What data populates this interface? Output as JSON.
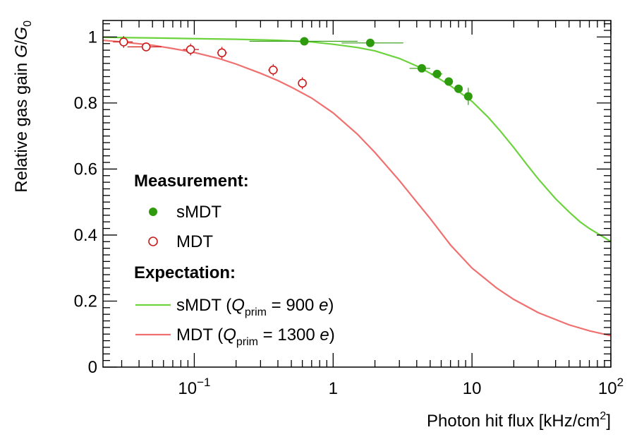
{
  "chart_data": {
    "type": "scatter",
    "title": "",
    "xlabel": {
      "main": "Photon hit flux [kHz/cm",
      "sup": "2",
      "end": "]"
    },
    "ylabel": {
      "main": "Relative gas gain ",
      "var": "G",
      "sep": "/",
      "var2": "G",
      "sub": "0"
    },
    "xscale": "log",
    "xlim": [
      0.022,
      100
    ],
    "ylim": [
      0,
      1.05
    ],
    "x_ticks": [
      {
        "value": 0.1,
        "base": "10",
        "exp": "−1"
      },
      {
        "value": 1,
        "base": "1",
        "exp": ""
      },
      {
        "value": 10,
        "base": "10",
        "exp": ""
      },
      {
        "value": 100,
        "base": "10",
        "exp": "2"
      }
    ],
    "y_ticks": [
      {
        "value": 0,
        "label": "0"
      },
      {
        "value": 0.2,
        "label": "0.2"
      },
      {
        "value": 0.4,
        "label": "0.4"
      },
      {
        "value": 0.6,
        "label": "0.6"
      },
      {
        "value": 0.8,
        "label": "0.8"
      },
      {
        "value": 1.0,
        "label": "1"
      }
    ],
    "grid": false,
    "legend": {
      "position": "center-left",
      "measurement_header": "Measurement:",
      "expectation_header": "Expectation:",
      "entries": [
        {
          "kind": "marker",
          "series": "sMDT",
          "label": "sMDT"
        },
        {
          "kind": "marker",
          "series": "MDT",
          "label": "MDT"
        },
        {
          "kind": "line",
          "series": "sMDT",
          "label": "sMDT (",
          "q": "Q",
          "sub": "prim",
          "eq": " =   900 ",
          "unit": "e",
          "close": ")"
        },
        {
          "kind": "line",
          "series": "MDT",
          "label": "MDT   (",
          "q": "Q",
          "sub": "prim",
          "eq": " = 1300 ",
          "unit": "e",
          "close": ")"
        }
      ]
    },
    "colors": {
      "smdt_marker": "#2e9a0e",
      "smdt_line": "#6cd33d",
      "mdt_marker": "#cc1a1a",
      "mdt_line": "#f07070"
    },
    "series": [
      {
        "name": "sMDT measurement",
        "style": "filled-circle",
        "color_key": "smdt_marker",
        "points": [
          {
            "x": 0.62,
            "y": 0.987,
            "xerr": [
              0.25,
              1.5
            ],
            "yerr": 0.006
          },
          {
            "x": 1.85,
            "y": 0.982,
            "xerr": [
              1.15,
              3.2
            ],
            "yerr": 0.006
          },
          {
            "x": 4.35,
            "y": 0.905,
            "xerr": [
              3.55,
              5.0
            ],
            "yerr": 0.008
          },
          {
            "x": 5.6,
            "y": 0.888,
            "xerr": [
              5.1,
              6.1
            ],
            "yerr": 0.008
          },
          {
            "x": 6.8,
            "y": 0.865,
            "xerr": [
              6.3,
              7.3
            ],
            "yerr": 0.008
          },
          {
            "x": 8.0,
            "y": 0.843,
            "xerr": [
              7.5,
              8.5
            ],
            "yerr": 0.01
          },
          {
            "x": 9.4,
            "y": 0.82,
            "xerr": [
              8.9,
              9.9
            ],
            "yerr": 0.026
          }
        ]
      },
      {
        "name": "MDT measurement",
        "style": "open-circle",
        "color_key": "mdt_marker",
        "points": [
          {
            "x": 0.031,
            "y": 0.985,
            "xerr": [
              0.026,
              0.036
            ],
            "yerr": 0.018
          },
          {
            "x": 0.045,
            "y": 0.97,
            "xerr": [
              0.033,
              0.058
            ],
            "yerr": 0.012
          },
          {
            "x": 0.094,
            "y": 0.962,
            "xerr": [
              0.083,
              0.108
            ],
            "yerr": 0.018
          },
          {
            "x": 0.158,
            "y": 0.952,
            "xerr": [
              0.146,
              0.172
            ],
            "yerr": 0.018
          },
          {
            "x": 0.37,
            "y": 0.9,
            "xerr": [
              0.34,
              0.4
            ],
            "yerr": 0.018
          },
          {
            "x": 0.6,
            "y": 0.86,
            "xerr": [
              0.57,
              0.63
            ],
            "yerr": 0.018
          }
        ]
      },
      {
        "name": "sMDT expectation",
        "style": "line",
        "color_key": "smdt_line",
        "points": [
          {
            "x": 0.022,
            "y": 0.999
          },
          {
            "x": 0.05,
            "y": 0.997
          },
          {
            "x": 0.1,
            "y": 0.995
          },
          {
            "x": 0.2,
            "y": 0.993
          },
          {
            "x": 0.4,
            "y": 0.99
          },
          {
            "x": 0.7,
            "y": 0.985
          },
          {
            "x": 1,
            "y": 0.978
          },
          {
            "x": 1.5,
            "y": 0.968
          },
          {
            "x": 2,
            "y": 0.958
          },
          {
            "x": 3,
            "y": 0.935
          },
          {
            "x": 4,
            "y": 0.912
          },
          {
            "x": 5,
            "y": 0.89
          },
          {
            "x": 6,
            "y": 0.87
          },
          {
            "x": 7,
            "y": 0.852
          },
          {
            "x": 8,
            "y": 0.835
          },
          {
            "x": 10,
            "y": 0.805
          },
          {
            "x": 13,
            "y": 0.758
          },
          {
            "x": 16,
            "y": 0.715
          },
          {
            "x": 20,
            "y": 0.665
          },
          {
            "x": 25,
            "y": 0.612
          },
          {
            "x": 30,
            "y": 0.57
          },
          {
            "x": 40,
            "y": 0.51
          },
          {
            "x": 50,
            "y": 0.47
          },
          {
            "x": 60,
            "y": 0.44
          },
          {
            "x": 70,
            "y": 0.42
          },
          {
            "x": 80,
            "y": 0.405
          },
          {
            "x": 90,
            "y": 0.392
          },
          {
            "x": 100,
            "y": 0.38
          }
        ]
      },
      {
        "name": "MDT expectation",
        "style": "line",
        "color_key": "mdt_line",
        "points": [
          {
            "x": 0.022,
            "y": 0.99
          },
          {
            "x": 0.03,
            "y": 0.985
          },
          {
            "x": 0.05,
            "y": 0.975
          },
          {
            "x": 0.07,
            "y": 0.965
          },
          {
            "x": 0.1,
            "y": 0.953
          },
          {
            "x": 0.15,
            "y": 0.935
          },
          {
            "x": 0.2,
            "y": 0.918
          },
          {
            "x": 0.3,
            "y": 0.89
          },
          {
            "x": 0.4,
            "y": 0.868
          },
          {
            "x": 0.5,
            "y": 0.848
          },
          {
            "x": 0.7,
            "y": 0.815
          },
          {
            "x": 1,
            "y": 0.77
          },
          {
            "x": 1.5,
            "y": 0.705
          },
          {
            "x": 2,
            "y": 0.65
          },
          {
            "x": 3,
            "y": 0.565
          },
          {
            "x": 4,
            "y": 0.5
          },
          {
            "x": 5,
            "y": 0.45
          },
          {
            "x": 7,
            "y": 0.37
          },
          {
            "x": 10,
            "y": 0.3
          },
          {
            "x": 15,
            "y": 0.24
          },
          {
            "x": 20,
            "y": 0.205
          },
          {
            "x": 30,
            "y": 0.165
          },
          {
            "x": 50,
            "y": 0.128
          },
          {
            "x": 70,
            "y": 0.11
          },
          {
            "x": 100,
            "y": 0.095
          }
        ]
      }
    ]
  }
}
